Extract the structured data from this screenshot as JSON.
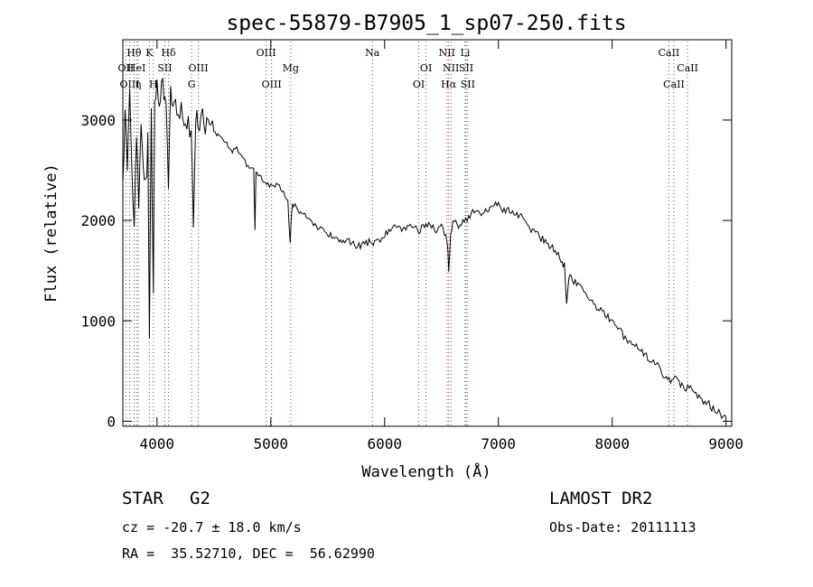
{
  "chart_data": {
    "type": "line",
    "title": "spec-55879-B7905_1_sp07-250.fits",
    "xlabel": "Wavelength (Å)",
    "ylabel": "Flux (relative)",
    "xlim": [
      3700,
      9050
    ],
    "ylim": [
      -50,
      3800
    ],
    "xticks": [
      4000,
      5000,
      6000,
      7000,
      8000,
      9000
    ],
    "yticks": [
      0,
      1000,
      2000,
      3000
    ],
    "series": [
      {
        "values_x": [
          3700,
          3720,
          3740,
          3760,
          3780,
          3800,
          3820,
          3840,
          3860,
          3880,
          3900,
          3920,
          3933,
          3950,
          3968,
          3980,
          4000,
          4020,
          4040,
          4060,
          4080,
          4101,
          4120,
          4150,
          4200,
          4250,
          4300,
          4320,
          4340,
          4360,
          4400,
          4450,
          4500,
          4550,
          4600,
          4650,
          4700,
          4750,
          4800,
          4850,
          4861,
          4870,
          4900,
          4950,
          5000,
          5050,
          5100,
          5150,
          5170,
          5183,
          5200,
          5250,
          5300,
          5350,
          5400,
          5450,
          5500,
          5550,
          5600,
          5650,
          5700,
          5750,
          5800,
          5850,
          5890,
          5900,
          5950,
          6000,
          6050,
          6100,
          6150,
          6200,
          6250,
          6300,
          6350,
          6400,
          6450,
          6500,
          6550,
          6563,
          6580,
          6600,
          6650,
          6700,
          6750,
          6800,
          6850,
          6900,
          6950,
          7000,
          7050,
          7100,
          7150,
          7200,
          7250,
          7300,
          7350,
          7400,
          7450,
          7500,
          7550,
          7580,
          7600,
          7620,
          7650,
          7700,
          7750,
          7800,
          7850,
          7900,
          7950,
          8000,
          8050,
          8100,
          8150,
          8200,
          8250,
          8300,
          8350,
          8400,
          8450,
          8500,
          8550,
          8600,
          8650,
          8700,
          8750,
          8800,
          8850,
          8900,
          8950,
          9000
        ],
        "values_y": [
          2500,
          3000,
          2600,
          3300,
          2500,
          1950,
          2800,
          2200,
          3000,
          2500,
          2300,
          2800,
          900,
          3000,
          1200,
          3200,
          3300,
          3150,
          3350,
          3250,
          3100,
          2300,
          3300,
          3200,
          3100,
          3000,
          2900,
          2050,
          3050,
          2950,
          3000,
          2950,
          2900,
          2850,
          2800,
          2700,
          2700,
          2600,
          2550,
          2500,
          1900,
          2450,
          2450,
          2400,
          2350,
          2350,
          2300,
          2200,
          1800,
          2100,
          2150,
          2100,
          2050,
          2000,
          1950,
          1900,
          1850,
          1850,
          1800,
          1800,
          1780,
          1750,
          1750,
          1780,
          1800,
          1780,
          1800,
          1850,
          1900,
          1950,
          1900,
          1950,
          1950,
          1900,
          1950,
          1950,
          1900,
          1950,
          1800,
          1520,
          1850,
          2000,
          1950,
          2000,
          2050,
          2100,
          2050,
          2100,
          2150,
          2150,
          2100,
          2100,
          2050,
          2050,
          1950,
          1900,
          1850,
          1800,
          1750,
          1700,
          1600,
          1550,
          1200,
          1450,
          1400,
          1350,
          1300,
          1200,
          1150,
          1100,
          1050,
          1000,
          950,
          850,
          800,
          750,
          700,
          650,
          600,
          550,
          450,
          420,
          400,
          380,
          350,
          300,
          250,
          200,
          160,
          120,
          80,
          40
        ]
      }
    ],
    "lines": [
      {
        "label": "Hθ",
        "x": 3798,
        "row": 0,
        "color": "#555555"
      },
      {
        "label": "OII",
        "x": 3727,
        "row": 1,
        "color": "#555555"
      },
      {
        "label": "OIII",
        "x": 3760,
        "row": 2,
        "color": "#555555"
      },
      {
        "label": "HeI",
        "x": 3820,
        "row": 1,
        "color": "#555555"
      },
      {
        "label": "η",
        "x": 3835,
        "row": 2,
        "color": "#555555"
      },
      {
        "label": "K",
        "x": 3933,
        "row": 0,
        "color": "#555555"
      },
      {
        "label": "SII",
        "x": 4069,
        "row": 1,
        "color": "#555555"
      },
      {
        "label": "H",
        "x": 3968,
        "row": 2,
        "color": "#555555"
      },
      {
        "label": "Hδ",
        "x": 4101,
        "row": 0,
        "color": "#555555"
      },
      {
        "label": "OIII",
        "x": 4363,
        "row": 1,
        "color": "#555555"
      },
      {
        "label": "G",
        "x": 4304,
        "row": 2,
        "color": "#555555"
      },
      {
        "label": "OIII",
        "x": 4959,
        "row": 0,
        "color": "#555555"
      },
      {
        "label": "OIII",
        "x": 5007,
        "row": 2,
        "color": "#555555"
      },
      {
        "label": "Mg",
        "x": 5175,
        "row": 1,
        "color": "#cc3333"
      },
      {
        "label": "Na",
        "x": 5893,
        "row": 0,
        "color": "#555555"
      },
      {
        "label": "OI",
        "x": 6300,
        "row": 2,
        "color": "#555555"
      },
      {
        "label": "OI",
        "x": 6364,
        "row": 1,
        "color": "#555555"
      },
      {
        "label": "NII",
        "x": 6548,
        "row": 0,
        "color": "#cc3333"
      },
      {
        "label": "NII",
        "x": 6583,
        "row": 1,
        "color": "#555555"
      },
      {
        "label": "Hα",
        "x": 6563,
        "row": 2,
        "color": "#cc3333"
      },
      {
        "label": "Li",
        "x": 6708,
        "row": 0,
        "color": "#555555"
      },
      {
        "label": "SII",
        "x": 6716,
        "row": 1,
        "color": "#555555"
      },
      {
        "label": "SII",
        "x": 6731,
        "row": 2,
        "color": "#cc3333"
      },
      {
        "label": "CaII",
        "x": 8498,
        "row": 0,
        "color": "#555555"
      },
      {
        "label": "CaII",
        "x": 8542,
        "row": 2,
        "color": "#555555"
      },
      {
        "label": "CaII",
        "x": 8662,
        "row": 1,
        "color": "#555555"
      }
    ]
  },
  "info": {
    "class_label": "STAR",
    "subclass_label": "G2",
    "survey": "LAMOST DR2",
    "cz": "cz = -20.7 ± 18.0 km/s",
    "obs_date": "Obs-Date: 20111113",
    "coords": "RA =  35.52710, DEC =  56.62990"
  }
}
